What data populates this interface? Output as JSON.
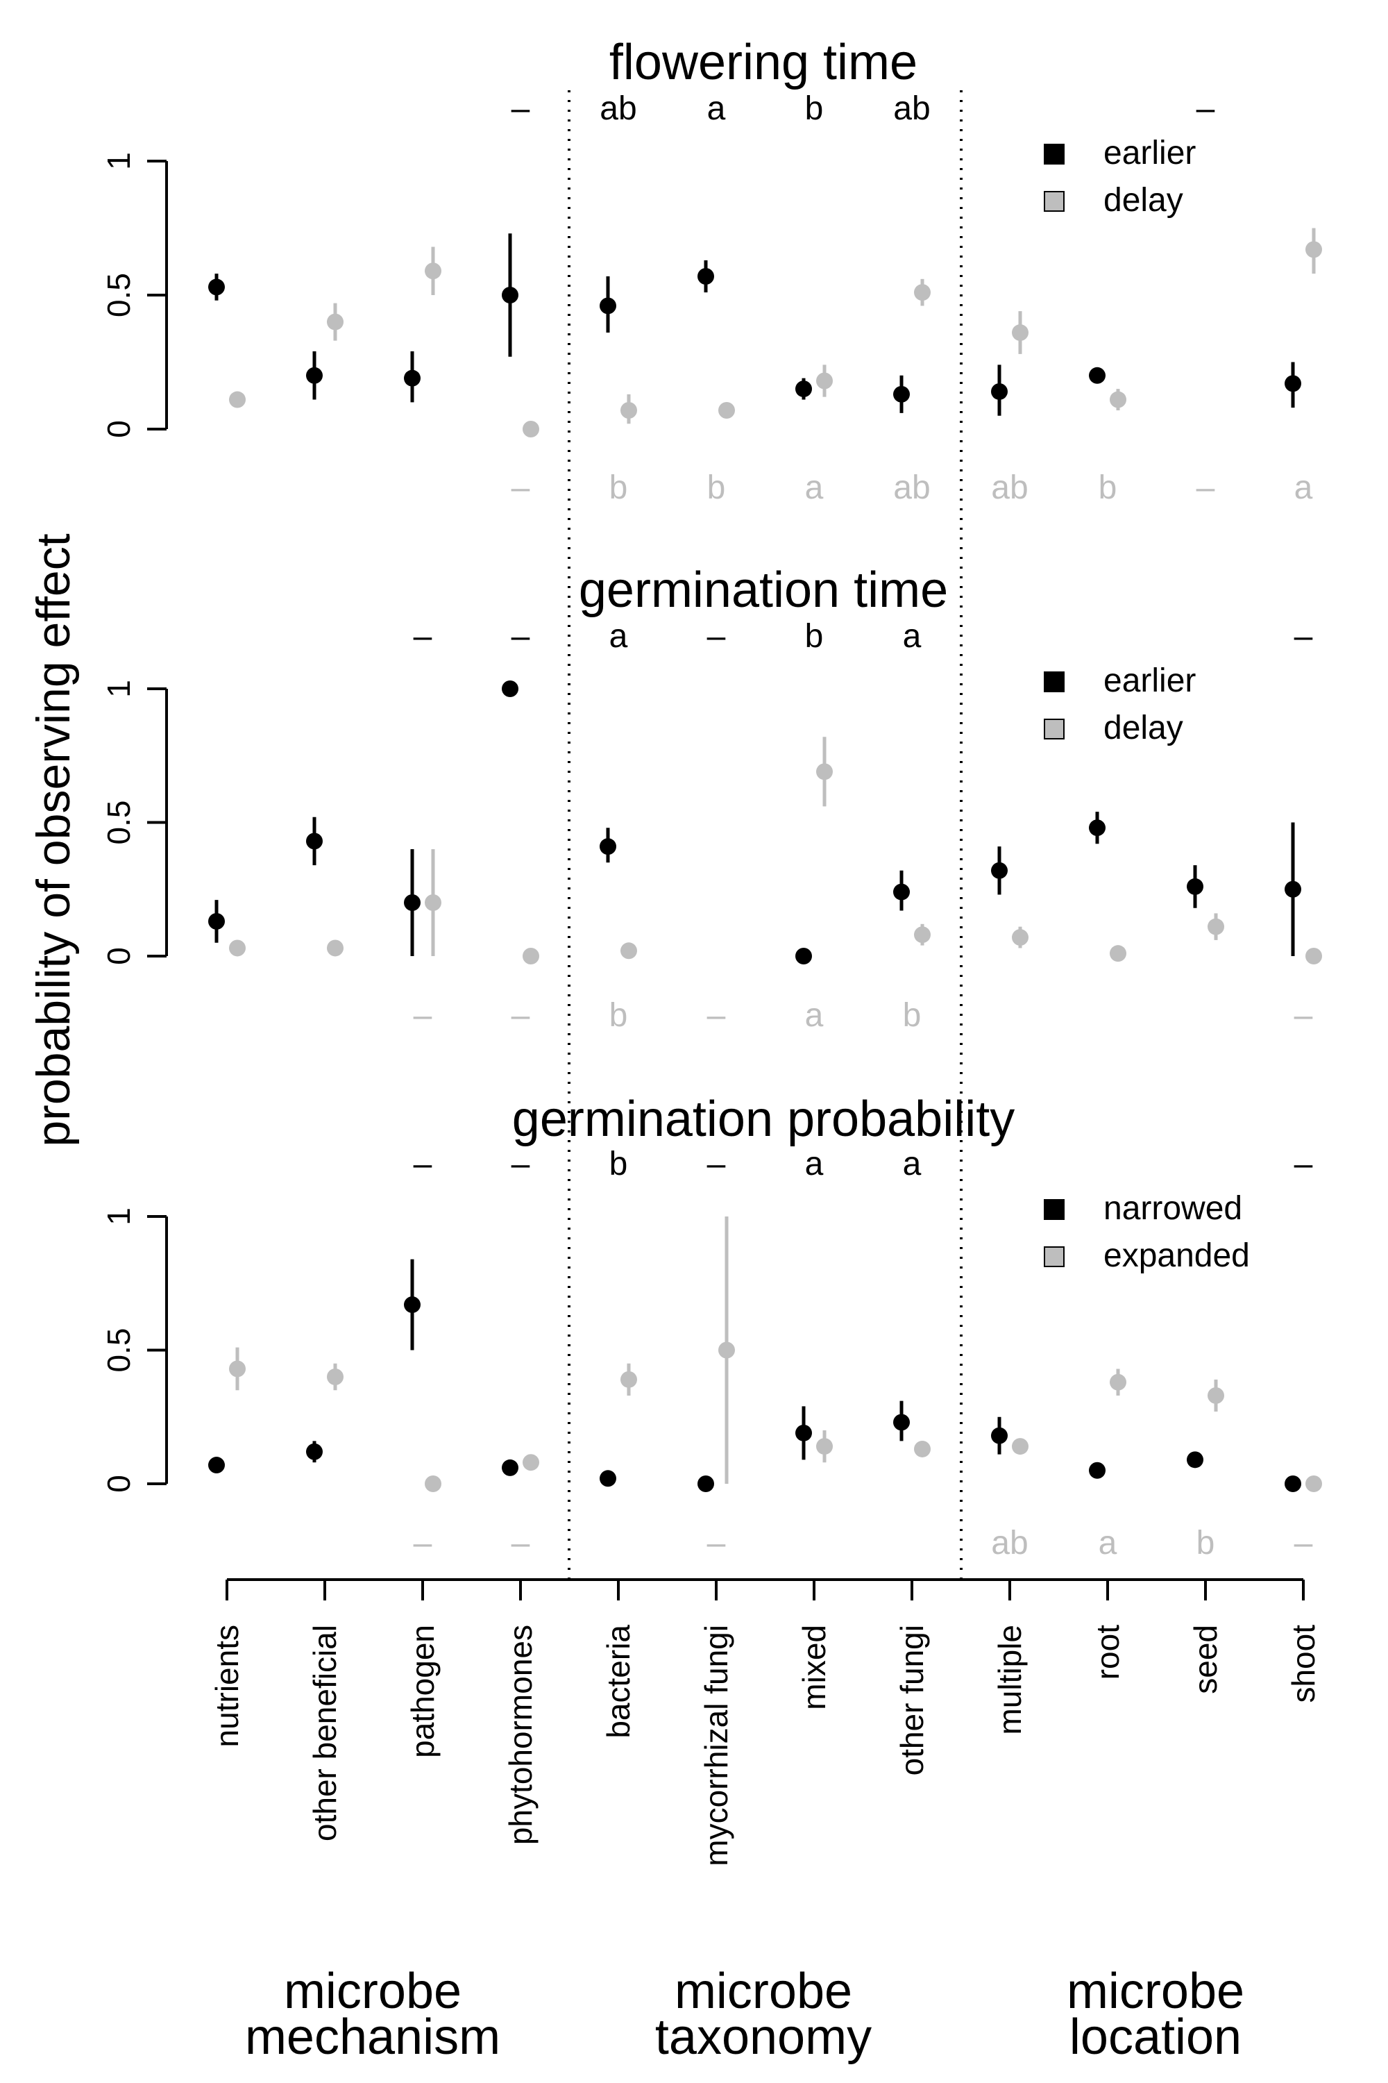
{
  "y_axis_label": "probability of observing effect",
  "category_groups": [
    {
      "title_line1": "microbe",
      "title_line2": "mechanism"
    },
    {
      "title_line1": "microbe",
      "title_line2": "taxonomy"
    },
    {
      "title_line1": "microbe",
      "title_line2": "location"
    }
  ],
  "colors": {
    "dark": "#000000",
    "light": "#bebebe"
  },
  "chart_data": {
    "type": "scatter",
    "categories": [
      "nutrients",
      "other beneficial",
      "pathogen",
      "phytohormones",
      "bacteria",
      "mycorrhizal fungi",
      "mixed",
      "other fungi",
      "multiple",
      "root",
      "seed",
      "shoot"
    ],
    "yticks": [
      "0",
      "0.5",
      "1"
    ],
    "panels": [
      {
        "title": "flowering time",
        "ylim": [
          0,
          1
        ],
        "legend": [
          "earlier",
          "delay"
        ],
        "series": [
          {
            "name": "earlier",
            "values": [
              0.53,
              0.2,
              0.19,
              0.5,
              0.46,
              0.57,
              0.15,
              0.13,
              0.14,
              0.2,
              null,
              0.17
            ],
            "lower": [
              0.48,
              0.11,
              0.1,
              0.27,
              0.36,
              0.51,
              0.11,
              0.06,
              0.05,
              0.18,
              null,
              0.08
            ],
            "upper": [
              0.58,
              0.29,
              0.29,
              0.73,
              0.57,
              0.63,
              0.19,
              0.2,
              0.24,
              0.22,
              null,
              0.25
            ],
            "letters": [
              "",
              "",
              "",
              "–",
              "ab",
              "a",
              "b",
              "ab",
              "",
              "",
              "–",
              ""
            ]
          },
          {
            "name": "delay",
            "values": [
              0.11,
              0.4,
              0.59,
              0.0,
              0.07,
              0.07,
              0.18,
              0.51,
              0.36,
              0.11,
              null,
              0.67
            ],
            "lower": [
              0.09,
              0.33,
              0.5,
              0.0,
              0.02,
              0.05,
              0.12,
              0.46,
              0.28,
              0.07,
              null,
              0.58
            ],
            "upper": [
              0.13,
              0.47,
              0.68,
              0.0,
              0.13,
              0.09,
              0.24,
              0.56,
              0.44,
              0.15,
              null,
              0.75
            ],
            "letters": [
              "",
              "",
              "",
              "–",
              "b",
              "b",
              "a",
              "ab",
              "ab",
              "b",
              "–",
              "a"
            ]
          }
        ]
      },
      {
        "title": "germination time",
        "ylim": [
          0,
          1
        ],
        "legend": [
          "earlier",
          "delay"
        ],
        "series": [
          {
            "name": "earlier",
            "values": [
              0.13,
              0.43,
              0.2,
              1.0,
              0.41,
              null,
              0.0,
              0.24,
              0.32,
              0.48,
              0.26,
              0.25
            ],
            "lower": [
              0.05,
              0.34,
              0.0,
              1.0,
              0.35,
              null,
              0.0,
              0.17,
              0.23,
              0.42,
              0.18,
              0.0
            ],
            "upper": [
              0.21,
              0.52,
              0.4,
              1.0,
              0.48,
              null,
              0.0,
              0.32,
              0.41,
              0.54,
              0.34,
              0.5
            ],
            "letters": [
              "",
              "",
              "–",
              "–",
              "a",
              "–",
              "b",
              "a",
              "",
              "",
              "",
              "–"
            ]
          },
          {
            "name": "delay",
            "values": [
              0.03,
              0.03,
              0.2,
              0.0,
              0.02,
              null,
              0.69,
              0.08,
              0.07,
              0.01,
              0.11,
              0.0
            ],
            "lower": [
              0.01,
              0.01,
              0.0,
              0.0,
              0.0,
              null,
              0.56,
              0.04,
              0.03,
              0.0,
              0.06,
              0.0
            ],
            "upper": [
              0.05,
              0.05,
              0.4,
              0.0,
              0.04,
              null,
              0.82,
              0.12,
              0.11,
              0.02,
              0.16,
              0.0
            ],
            "letters": [
              "",
              "",
              "–",
              "–",
              "b",
              "–",
              "a",
              "b",
              "",
              "",
              "",
              "–"
            ]
          }
        ]
      },
      {
        "title": "germination probability",
        "ylim": [
          0,
          1
        ],
        "legend": [
          "narrowed",
          "expanded"
        ],
        "series": [
          {
            "name": "narrowed",
            "values": [
              0.07,
              0.12,
              0.67,
              0.06,
              0.02,
              0.0,
              0.19,
              0.23,
              0.18,
              0.05,
              0.09,
              0.0
            ],
            "lower": [
              0.04,
              0.08,
              0.5,
              0.03,
              0.01,
              0.0,
              0.09,
              0.16,
              0.11,
              0.04,
              0.06,
              0.0
            ],
            "upper": [
              0.1,
              0.16,
              0.84,
              0.09,
              0.03,
              0.0,
              0.29,
              0.31,
              0.25,
              0.06,
              0.12,
              0.0
            ],
            "letters": [
              "",
              "",
              "–",
              "–",
              "b",
              "–",
              "a",
              "a",
              "",
              "",
              "",
              "–"
            ]
          },
          {
            "name": "expanded",
            "values": [
              0.43,
              0.4,
              0.0,
              0.08,
              0.39,
              0.5,
              0.14,
              0.13,
              0.14,
              0.38,
              0.33,
              0.0
            ],
            "lower": [
              0.35,
              0.35,
              0.0,
              0.05,
              0.33,
              0.0,
              0.08,
              0.1,
              0.11,
              0.33,
              0.27,
              0.0
            ],
            "upper": [
              0.51,
              0.45,
              0.0,
              0.11,
              0.45,
              1.0,
              0.2,
              0.16,
              0.17,
              0.43,
              0.39,
              0.0
            ],
            "letters": [
              "",
              "",
              "–",
              "–",
              "",
              "–",
              "",
              "",
              "ab",
              "a",
              "b",
              "–"
            ]
          }
        ]
      }
    ]
  }
}
